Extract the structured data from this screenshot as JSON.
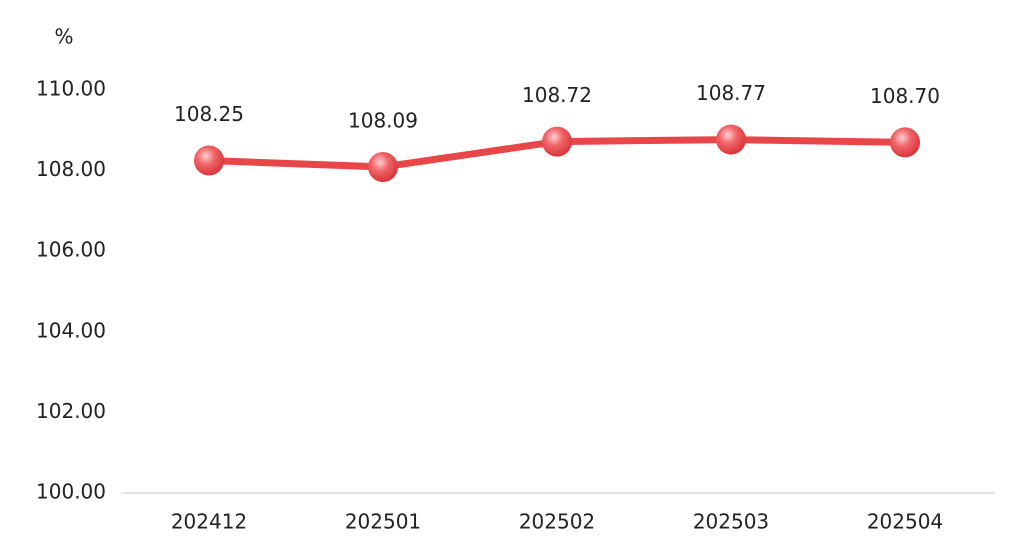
{
  "chart_data": {
    "type": "line",
    "y_label": "%",
    "categories": [
      "202412",
      "202501",
      "202502",
      "202503",
      "202504"
    ],
    "series": [
      {
        "color": "#e8474a",
        "values": [
          108.25,
          108.09,
          108.72,
          108.77,
          108.7
        ],
        "value_labels": [
          "108.25",
          "108.09",
          "108.72",
          "108.77",
          "108.70"
        ]
      }
    ],
    "ylim": [
      100,
      110
    ],
    "yticks": [
      {
        "value": 100,
        "label": "100.00"
      },
      {
        "value": 102,
        "label": "102.00"
      },
      {
        "value": 104,
        "label": "104.00"
      },
      {
        "value": 106,
        "label": "106.00"
      },
      {
        "value": 108,
        "label": "108.00"
      },
      {
        "value": 110,
        "label": "110.00"
      }
    ],
    "grid": false
  }
}
